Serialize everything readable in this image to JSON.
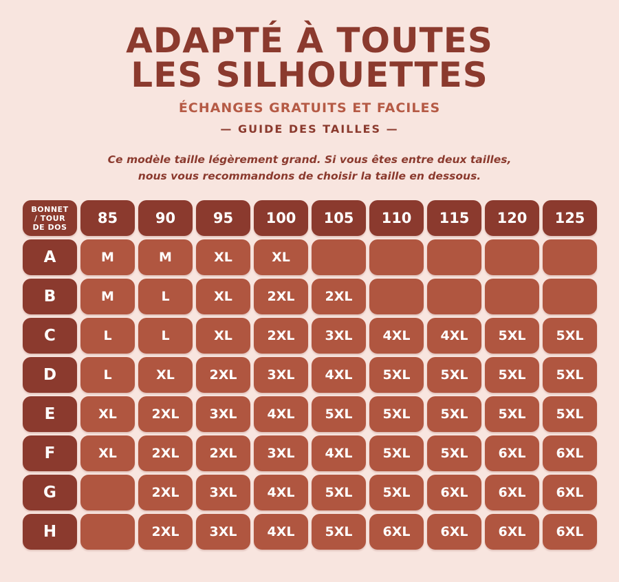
{
  "header": {
    "title_line1": "ADAPTÉ À TOUTES",
    "title_line2": "LES SILHOUETTES",
    "subtitle": "ÉCHANGES GRATUITS ET FACILES",
    "guide_label": "— GUIDE DES TAILLES —",
    "note_line1": "Ce modèle taille légèrement grand. Si vous êtes entre deux tailles,",
    "note_line2": "nous vous recommandons de choisir la taille en dessous."
  },
  "colors": {
    "background": "#f8e5df",
    "header_cell": "#8b3a2e",
    "size_cell": "#b05640",
    "subtitle": "#b55a45",
    "text_dark": "#8b3a2e"
  },
  "table": {
    "corner_label": "BONNET\n/ TOUR\nDE DOS",
    "columns": [
      "85",
      "90",
      "95",
      "100",
      "105",
      "110",
      "115",
      "120",
      "125"
    ],
    "rows": [
      {
        "cup": "A",
        "sizes": [
          "M",
          "M",
          "XL",
          "XL",
          "",
          "",
          "",
          "",
          ""
        ]
      },
      {
        "cup": "B",
        "sizes": [
          "M",
          "L",
          "XL",
          "2XL",
          "2XL",
          "",
          "",
          "",
          ""
        ]
      },
      {
        "cup": "C",
        "sizes": [
          "L",
          "L",
          "XL",
          "2XL",
          "3XL",
          "4XL",
          "4XL",
          "5XL",
          "5XL"
        ]
      },
      {
        "cup": "D",
        "sizes": [
          "L",
          "XL",
          "2XL",
          "3XL",
          "4XL",
          "5XL",
          "5XL",
          "5XL",
          "5XL"
        ]
      },
      {
        "cup": "E",
        "sizes": [
          "XL",
          "2XL",
          "3XL",
          "4XL",
          "5XL",
          "5XL",
          "5XL",
          "5XL",
          "5XL"
        ]
      },
      {
        "cup": "F",
        "sizes": [
          "XL",
          "2XL",
          "2XL",
          "3XL",
          "4XL",
          "5XL",
          "5XL",
          "6XL",
          "6XL"
        ]
      },
      {
        "cup": "G",
        "sizes": [
          "",
          "2XL",
          "3XL",
          "4XL",
          "5XL",
          "5XL",
          "6XL",
          "6XL",
          "6XL"
        ]
      },
      {
        "cup": "H",
        "sizes": [
          "",
          "2XL",
          "3XL",
          "4XL",
          "5XL",
          "6XL",
          "6XL",
          "6XL",
          "6XL"
        ]
      }
    ]
  }
}
